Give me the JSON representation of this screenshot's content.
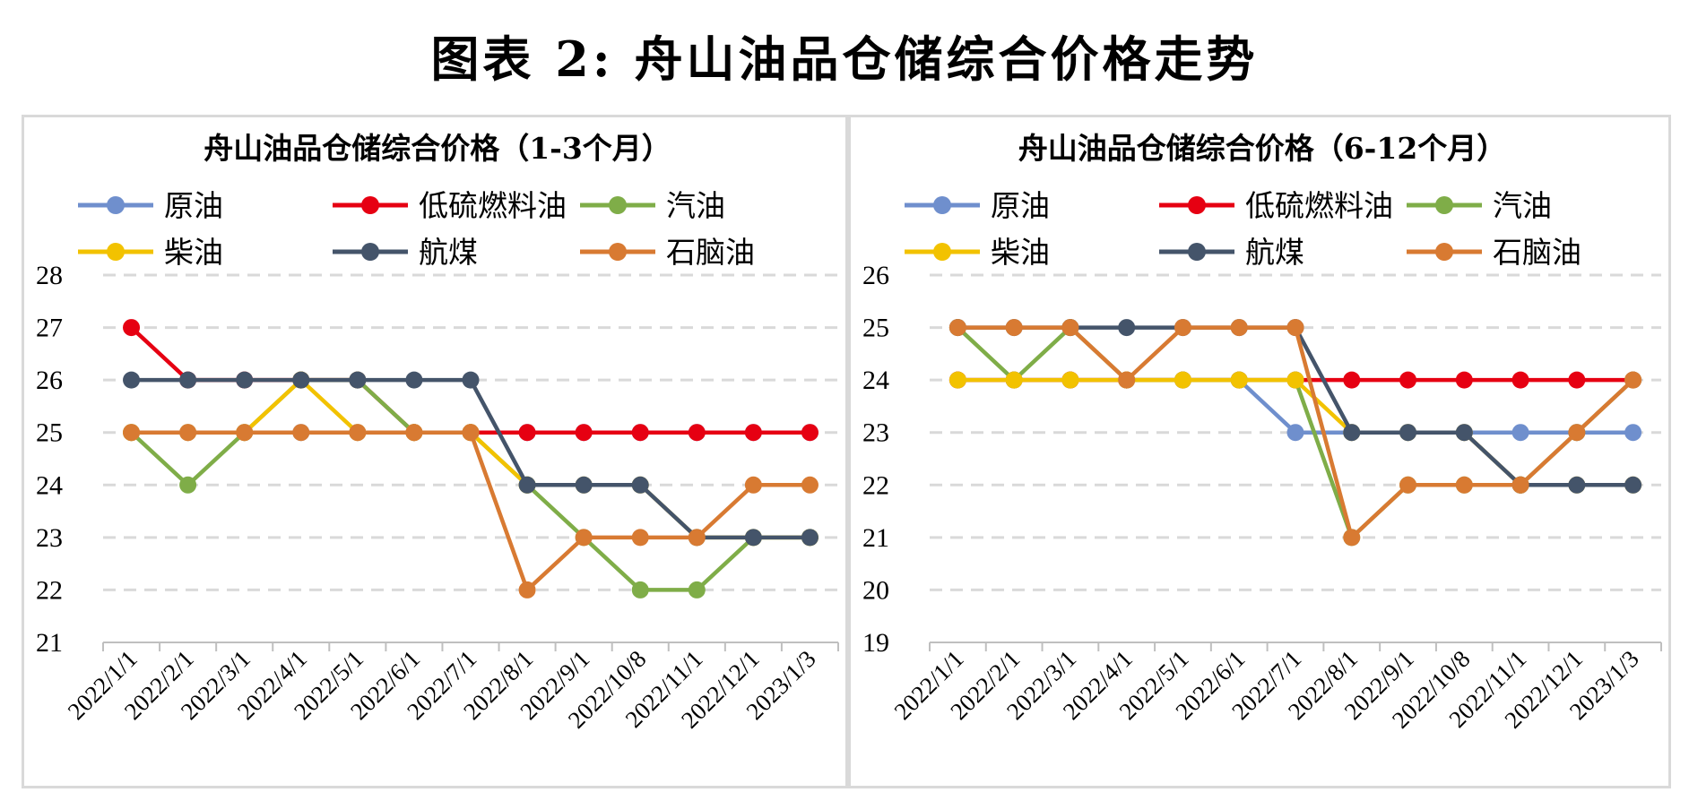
{
  "title": "图表 2:  舟山油品仓储综合价格走势",
  "colors": {
    "crude": "#6f8fcd",
    "lsfo": "#e60012",
    "gasoline": "#7fad48",
    "diesel": "#f2c200",
    "jet": "#44546a",
    "naphtha": "#d87a32",
    "grid": "#d9d9d9",
    "axis": "#bfbfbf"
  },
  "chart_data": [
    {
      "type": "line",
      "title": "舟山油品仓储综合价格（1-3个月）",
      "categories": [
        "2022/1/1",
        "2022/2/1",
        "2022/3/1",
        "2022/4/1",
        "2022/5/1",
        "2022/6/1",
        "2022/7/1",
        "2022/8/1",
        "2022/9/1",
        "2022/10/8",
        "2022/11/1",
        "2022/12/1",
        "2023/1/3"
      ],
      "ylim": [
        21,
        28
      ],
      "yticks": [
        21,
        22,
        23,
        24,
        25,
        26,
        27,
        28
      ],
      "grid": true,
      "legend": "top",
      "xlabel": "",
      "ylabel": "",
      "series": [
        {
          "key": "crude",
          "name": "原油",
          "values": [
            25,
            25,
            25,
            25,
            25,
            25,
            25,
            25,
            25,
            25,
            25,
            25,
            25
          ]
        },
        {
          "key": "lsfo",
          "name": "低硫燃料油",
          "values": [
            27,
            26,
            26,
            26,
            26,
            25,
            25,
            25,
            25,
            25,
            25,
            25,
            25
          ]
        },
        {
          "key": "gasoline",
          "name": "汽油",
          "values": [
            25,
            24,
            25,
            26,
            26,
            25,
            25,
            24,
            23,
            22,
            22,
            23,
            23
          ]
        },
        {
          "key": "diesel",
          "name": "柴油",
          "values": [
            25,
            25,
            25,
            26,
            25,
            25,
            25,
            24,
            24,
            24,
            23,
            23,
            23
          ]
        },
        {
          "key": "jet",
          "name": "航煤",
          "values": [
            26,
            26,
            26,
            26,
            26,
            26,
            26,
            24,
            24,
            24,
            23,
            23,
            23
          ]
        },
        {
          "key": "naphtha",
          "name": "石脑油",
          "values": [
            25,
            25,
            25,
            25,
            25,
            25,
            25,
            22,
            23,
            23,
            23,
            24,
            24
          ]
        }
      ]
    },
    {
      "type": "line",
      "title": "舟山油品仓储综合价格（6-12个月）",
      "categories": [
        "2022/1/1",
        "2022/2/1",
        "2022/3/1",
        "2022/4/1",
        "2022/5/1",
        "2022/6/1",
        "2022/7/1",
        "2022/8/1",
        "2022/9/1",
        "2022/10/8",
        "2022/11/1",
        "2022/12/1",
        "2023/1/3"
      ],
      "ylim": [
        19,
        26
      ],
      "yticks": [
        19,
        20,
        21,
        22,
        23,
        24,
        25,
        26
      ],
      "grid": true,
      "legend": "top",
      "xlabel": "",
      "ylabel": "",
      "series": [
        {
          "key": "crude",
          "name": "原油",
          "values": [
            24,
            24,
            24,
            24,
            24,
            24,
            23,
            23,
            23,
            23,
            23,
            23,
            23
          ]
        },
        {
          "key": "lsfo",
          "name": "低硫燃料油",
          "values": [
            24,
            24,
            24,
            24,
            24,
            24,
            24,
            24,
            24,
            24,
            24,
            24,
            24
          ]
        },
        {
          "key": "gasoline",
          "name": "汽油",
          "values": [
            25,
            24,
            25,
            24,
            24,
            24,
            24,
            21,
            22,
            22,
            22,
            23,
            24
          ]
        },
        {
          "key": "diesel",
          "name": "柴油",
          "values": [
            24,
            24,
            24,
            24,
            24,
            24,
            24,
            23,
            23,
            23,
            22,
            22,
            22
          ]
        },
        {
          "key": "jet",
          "name": "航煤",
          "values": [
            25,
            25,
            25,
            25,
            25,
            25,
            25,
            23,
            23,
            23,
            22,
            22,
            22
          ]
        },
        {
          "key": "naphtha",
          "name": "石脑油",
          "values": [
            25,
            25,
            25,
            24,
            25,
            25,
            25,
            21,
            22,
            22,
            22,
            23,
            24
          ]
        }
      ]
    }
  ]
}
